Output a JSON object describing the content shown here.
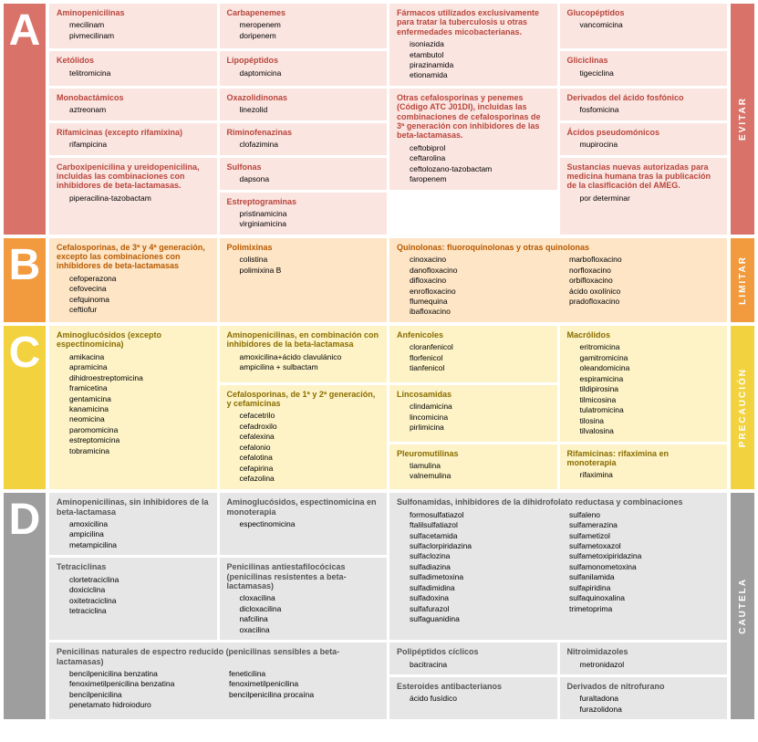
{
  "sections": {
    "A": {
      "letter": "A",
      "sidelabel": "EVITAR",
      "colors": {
        "main": "#d9736a",
        "card": "#fbe5e1",
        "title": "#b8463c"
      },
      "cards": [
        {
          "id": "a-1",
          "title": "Aminopenicilinas",
          "items": [
            "mecilinam",
            "pivmecilinam"
          ]
        },
        {
          "id": "a-2",
          "title": "Carbapenemes",
          "items": [
            "meropenem",
            "doripenem"
          ]
        },
        {
          "id": "a-3",
          "title": "Fármacos utilizados exclusivamente para tratar la tuberculosis u otras enfermedades micobacterianas.",
          "items": [
            "isoniazida",
            "etambutol",
            "pirazinamida",
            "etionamida"
          ]
        },
        {
          "id": "a-4",
          "title": "Glucopéptidos",
          "items": [
            "vancomicina"
          ]
        },
        {
          "id": "a-5",
          "title": "Ketólidos",
          "items": [
            "telitromicina"
          ]
        },
        {
          "id": "a-6",
          "title": "Lipopéptidos",
          "items": [
            "daptomicina"
          ]
        },
        {
          "id": "a-7",
          "title": "Gliciclinas",
          "items": [
            "tigeciclina"
          ]
        },
        {
          "id": "a-8",
          "title": "Monobactámicos",
          "items": [
            "aztreonam"
          ]
        },
        {
          "id": "a-9",
          "title": "Oxazolidinonas",
          "items": [
            "linezolid"
          ]
        },
        {
          "id": "a-10",
          "title": "Derivados del ácido fosfónico",
          "items": [
            "fosfomicina"
          ]
        },
        {
          "id": "a-11",
          "title": "Rifamicinas (excepto rifamixina)",
          "items": [
            "rifampicina"
          ]
        },
        {
          "id": "a-12",
          "title": "Riminofenazinas",
          "items": [
            "clofazimina"
          ]
        },
        {
          "id": "a-13",
          "title": "Otras cefalosporinas y penemes (Código ATC J01DI), incluidas las combinaciones de cefalosporinas de 3ª generación con inhibidores de las beta-lactamasas.",
          "items": [
            "ceftobiprol",
            "ceftarolina",
            "ceftolozano-tazobactam",
            "faropenem"
          ]
        },
        {
          "id": "a-14",
          "title": "Ácidos pseudomónicos",
          "items": [
            "mupirocina"
          ]
        },
        {
          "id": "a-15",
          "title": "Carboxipenicilina y ureidopenicilina, incluidas las combinaciones con inhibidores de beta-lactamasas.",
          "items": [
            "piperacilina-tazobactam"
          ]
        },
        {
          "id": "a-16",
          "title": "Sulfonas",
          "items": [
            "dapsona"
          ]
        },
        {
          "id": "a-17",
          "title": "Estreptograminas",
          "items": [
            "pristinamicina",
            "virginiamicina"
          ]
        },
        {
          "id": "a-18",
          "title": "Sustancias nuevas autorizadas para medicina humana tras la publicación de la clasificación del AMEG.",
          "items": [
            "por determinar"
          ]
        }
      ]
    },
    "B": {
      "letter": "B",
      "sidelabel": "LIMITAR",
      "colors": {
        "main": "#f29b3e",
        "card": "#fde5c6",
        "title": "#b85a00"
      },
      "cards": [
        {
          "id": "b-1",
          "title": "Cefalosporinas, de 3ª y 4ª generación, excepto las combinaciones con inhibidores de beta-lactamasas",
          "items": [
            "cefoperazona",
            "cefovecina",
            "cefquinoma",
            "ceftiofur"
          ]
        },
        {
          "id": "b-2",
          "title": "Polimixinas",
          "items": [
            "colistina",
            "polimixina B"
          ]
        },
        {
          "id": "b-3",
          "title": "Quinolonas: fluoroquinolonas y otras quinolonas",
          "items": [
            "cinoxacino",
            "danofloxacino",
            "difloxacino",
            "enrofloxacino",
            "flumequina",
            "ibafloxacino",
            "marbofloxacino",
            "norfloxacino",
            "orbifloxacino",
            "ácido oxolínico",
            "pradofloxacino"
          ]
        }
      ]
    },
    "C": {
      "letter": "C",
      "sidelabel": "PRECAUCIÓN",
      "colors": {
        "main": "#f2d23e",
        "card": "#fdf3c6",
        "title": "#8a6d00"
      },
      "cards": [
        {
          "id": "c-1",
          "title": "Aminoglucósidos (excepto espectinomicina)",
          "items": [
            "amikacina",
            "apramicina",
            "dihidroestreptomicina",
            "framicetina",
            "gentamicina",
            "kanamicina",
            "neomicina",
            "paromomicina",
            "estreptomicina",
            "tobramicina"
          ]
        },
        {
          "id": "c-2",
          "title": "Aminopenicilinas, en combinación con inhibidores de la beta-lactamasa",
          "items": [
            "amoxicilina+ácido clavulánico",
            "ampicilina + sulbactam"
          ]
        },
        {
          "id": "c-3",
          "title": "Cefalosporinas, de 1ª y 2ª generación, y cefamicinas",
          "items": [
            "cefacetrilo",
            "cefadroxilo",
            "cefalexina",
            "cefalonio",
            "cefalotina",
            "cefapirina",
            "cefazolina"
          ]
        },
        {
          "id": "c-4",
          "title": "Anfenicoles",
          "items": [
            "cloranfenicol",
            "florfenicol",
            "tianfenicol"
          ]
        },
        {
          "id": "c-5",
          "title": "Lincosamidas",
          "items": [
            "clindamicina",
            "lincomicina",
            "pirlimicina"
          ]
        },
        {
          "id": "c-6",
          "title": "Pleuromutilinas",
          "items": [
            "tiamulina",
            "valnemulina"
          ]
        },
        {
          "id": "c-7",
          "title": "Macrólidos",
          "items": [
            "eritromicina",
            "gamitromicina",
            "oleandomicina",
            "espiramicina",
            "tildipirosina",
            "tilmicosina",
            "tulatromicina",
            "tilosina",
            "tilvalosina"
          ]
        },
        {
          "id": "c-8",
          "title": "Rifamicinas: rifaximina en monoterapia",
          "items": [
            "rifaximina"
          ]
        }
      ]
    },
    "D": {
      "letter": "D",
      "sidelabel": "CAUTELA",
      "colors": {
        "main": "#9e9e9e",
        "card": "#e6e6e6",
        "title": "#555555"
      },
      "cards": [
        {
          "id": "d-1",
          "title": "Aminopenicilinas, sin inhibidores de la beta-lactamasa",
          "items": [
            "amoxicilina",
            "ampicilina",
            "metampicilina"
          ]
        },
        {
          "id": "d-2",
          "title": "Tetraciclinas",
          "items": [
            "clortetraciclina",
            "doxiciclina",
            "oxitetraciclina",
            "tetraciclina"
          ]
        },
        {
          "id": "d-3",
          "title": "Aminoglucósidos, espectinomicina en monoterapia",
          "items": [
            "espectinomicina"
          ]
        },
        {
          "id": "d-4",
          "title": "Penicilinas antiestafilocócicas (penicilinas resistentes a beta-lactamasas)",
          "items": [
            "cloxacilina",
            "dicloxacilina",
            "nafcilina",
            "oxacilina"
          ]
        },
        {
          "id": "d-5",
          "title": "Sulfonamidas, inhibidores de la dihidrofolato reductasa y combinaciones",
          "items": [
            "formosulfatiazol",
            "ftalilsulfatiazol",
            "sulfacetamida",
            "sulfaclorpiridazina",
            "sulfaclozina",
            "sulfadiazina",
            "sulfadimetoxina",
            "sulfadimidina",
            "sulfadoxina",
            "sulfafurazol",
            "sulfaguanidina",
            "sulfaleno",
            "sulfamerazina",
            "sulfametizol",
            "sulfametoxazol",
            "sulfametoxipiridazina",
            "sulfamonometoxina",
            "sulfanilamida",
            "sulfapiridina",
            "sulfaquinoxalina",
            "trimetoprima"
          ]
        },
        {
          "id": "d-6",
          "title": "Penicilinas naturales de espectro reducido (penicilinas sensibles a beta-lactamasas)",
          "items": [
            "bencilpenicilina benzatina",
            "fenoximetilpenicilina benzatina",
            "bencilpenicilina",
            "penetamato hidroioduro",
            "feneticilina",
            "fenoximetilpenicilina",
            "bencilpenicilina procaína"
          ]
        },
        {
          "id": "d-7",
          "title": "Polipéptidos cíclicos",
          "items": [
            "bacitracina"
          ]
        },
        {
          "id": "d-8",
          "title": "Esteroides antibacterianos",
          "items": [
            "ácido fusídico"
          ]
        },
        {
          "id": "d-9",
          "title": "Nitroimidazoles",
          "items": [
            "metronidazol"
          ]
        },
        {
          "id": "d-10",
          "title": "Derivados de nitrofurano",
          "items": [
            "furaltadona",
            "furazolidona"
          ]
        }
      ]
    }
  }
}
